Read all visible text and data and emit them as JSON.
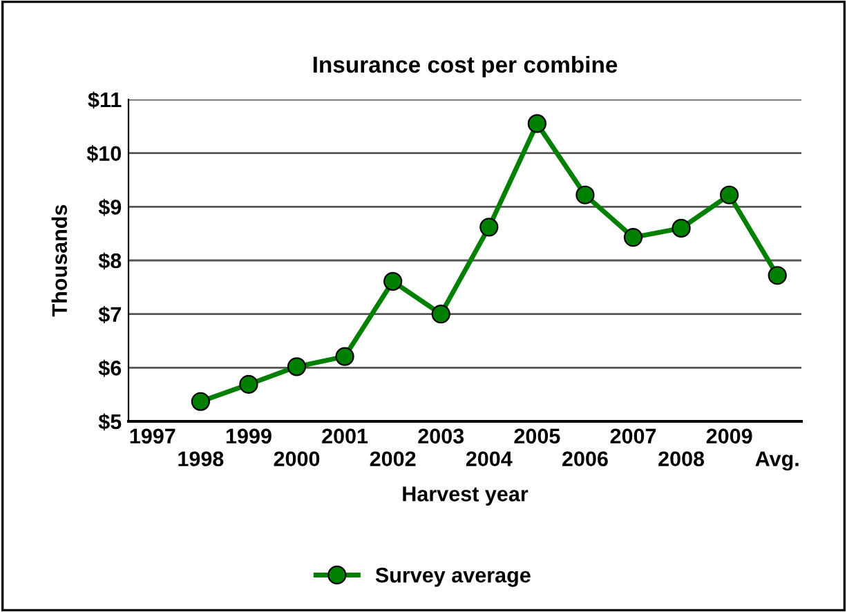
{
  "chart_data": {
    "type": "line",
    "title": "Insurance cost per combine",
    "xlabel": "Harvest year",
    "ylabel": "Thousands",
    "categories": [
      "1997",
      "1998",
      "1999",
      "2000",
      "2001",
      "2002",
      "2003",
      "2004",
      "2005",
      "2006",
      "2007",
      "2008",
      "2009",
      "Avg."
    ],
    "series": [
      {
        "name": "Survey average",
        "color": "#008000",
        "values": [
          null,
          5.37,
          5.69,
          6.02,
          6.21,
          7.61,
          7.0,
          8.62,
          10.55,
          9.22,
          8.43,
          8.6,
          9.22,
          7.72
        ]
      }
    ],
    "ylim": [
      5,
      11
    ],
    "yticks": [
      {
        "value": 5,
        "label": "$5"
      },
      {
        "value": 6,
        "label": "$6"
      },
      {
        "value": 7,
        "label": "$7"
      },
      {
        "value": 8,
        "label": "$8"
      },
      {
        "value": 9,
        "label": "$9"
      },
      {
        "value": 10,
        "label": "$10"
      },
      {
        "value": 11,
        "label": "$11"
      }
    ],
    "grid": "y",
    "legend": "bottom",
    "marker": "circle",
    "line_style": "solid"
  }
}
